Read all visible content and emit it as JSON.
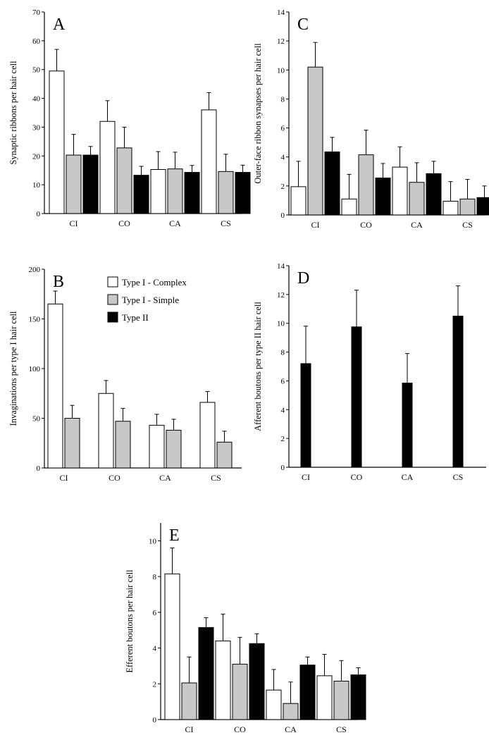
{
  "colors": {
    "complex_fill": "#ffffff",
    "simple_fill": "#c8c8c8",
    "type2_fill": "#000000",
    "stroke": "#000000"
  },
  "legend": {
    "entries": [
      {
        "label": "Type I - Complex",
        "color_key": "complex_fill"
      },
      {
        "label": "Type I - Simple",
        "color_key": "simple_fill"
      },
      {
        "label": "Type II",
        "color_key": "type2_fill"
      }
    ]
  },
  "chart_data": [
    {
      "id": "A",
      "type": "bar",
      "title": "A",
      "ylabel": "Synaptic ribbons per hair cell",
      "xlabel": "",
      "categories": [
        "CI",
        "CO",
        "CA",
        "CS"
      ],
      "ylim": [
        0,
        70
      ],
      "yticks": [
        0,
        10,
        20,
        30,
        40,
        50,
        60,
        70
      ],
      "series": [
        {
          "name": "Type I - Complex",
          "color_key": "complex_fill",
          "values": [
            49.5,
            32,
            15.3,
            36
          ],
          "errors": [
            7.5,
            7.2,
            6.2,
            6
          ]
        },
        {
          "name": "Type I - Simple",
          "color_key": "simple_fill",
          "values": [
            20.3,
            22.8,
            15.5,
            14.6
          ],
          "errors": [
            7.2,
            7.2,
            5.8,
            6
          ]
        },
        {
          "name": "Type II",
          "color_key": "type2_fill",
          "values": [
            20.3,
            13.3,
            14.3,
            14.3
          ],
          "errors": [
            3,
            3.1,
            2.4,
            2.5
          ]
        }
      ]
    },
    {
      "id": "C",
      "type": "bar",
      "title": "C",
      "ylabel": "Outer-face ribbon synapses per hair cell",
      "xlabel": "",
      "categories": [
        "CI",
        "CO",
        "CA",
        "CS"
      ],
      "ylim": [
        0,
        14
      ],
      "yticks": [
        0,
        2,
        4,
        6,
        8,
        10,
        12,
        14
      ],
      "series": [
        {
          "name": "Type I - Complex",
          "color_key": "complex_fill",
          "values": [
            1.95,
            1.1,
            3.3,
            0.95
          ],
          "errors": [
            1.75,
            1.7,
            1.4,
            1.35
          ]
        },
        {
          "name": "Type I - Simple",
          "color_key": "simple_fill",
          "values": [
            10.2,
            4.15,
            2.25,
            1.1
          ],
          "errors": [
            1.7,
            1.7,
            1.35,
            1.35
          ]
        },
        {
          "name": "Type II",
          "color_key": "type2_fill",
          "values": [
            4.35,
            2.55,
            2.85,
            1.2
          ],
          "errors": [
            1.0,
            1.0,
            0.85,
            0.8
          ]
        }
      ]
    },
    {
      "id": "B",
      "type": "bar",
      "title": "B",
      "ylabel": "Invaginations per type I hair cell",
      "xlabel": "",
      "categories": [
        "CI",
        "CO",
        "CA",
        "CS"
      ],
      "ylim": [
        0,
        200
      ],
      "yticks": [
        0,
        50,
        100,
        150,
        200
      ],
      "series": [
        {
          "name": "Type I - Complex",
          "color_key": "complex_fill",
          "values": [
            165,
            75,
            43,
            66
          ],
          "errors": [
            13,
            13,
            11,
            11
          ]
        },
        {
          "name": "Type I - Simple",
          "color_key": "simple_fill",
          "values": [
            50,
            47,
            38,
            26
          ],
          "errors": [
            13,
            13,
            11,
            11
          ]
        }
      ]
    },
    {
      "id": "D",
      "type": "bar",
      "title": "D",
      "ylabel": "Afferent boutons per type II hair cell",
      "xlabel": "",
      "categories": [
        "CI",
        "CO",
        "CA",
        "CS"
      ],
      "ylim": [
        0,
        14
      ],
      "yticks": [
        0,
        2,
        4,
        6,
        8,
        10,
        12,
        14
      ],
      "series": [
        {
          "name": "Type II",
          "color_key": "type2_fill",
          "values": [
            7.2,
            9.75,
            5.85,
            10.5
          ],
          "errors": [
            2.6,
            2.55,
            2.05,
            2.1
          ]
        }
      ]
    },
    {
      "id": "E",
      "type": "bar",
      "title": "E",
      "ylabel": "Efferent boutons per hair cell",
      "xlabel": "",
      "categories": [
        "CI",
        "CO",
        "CA",
        "CS"
      ],
      "ylim": [
        0,
        11
      ],
      "yticks": [
        0,
        2,
        4,
        6,
        8,
        10
      ],
      "series": [
        {
          "name": "Type I - Complex",
          "color_key": "complex_fill",
          "values": [
            8.15,
            4.4,
            1.65,
            2.45
          ],
          "errors": [
            1.45,
            1.5,
            1.15,
            1.2
          ]
        },
        {
          "name": "Type I - Simple",
          "color_key": "simple_fill",
          "values": [
            2.05,
            3.1,
            0.9,
            2.15
          ],
          "errors": [
            1.45,
            1.5,
            1.2,
            1.15
          ]
        },
        {
          "name": "Type II",
          "color_key": "type2_fill",
          "values": [
            5.15,
            4.25,
            3.05,
            2.5
          ],
          "errors": [
            0.55,
            0.55,
            0.45,
            0.4
          ]
        }
      ]
    }
  ]
}
